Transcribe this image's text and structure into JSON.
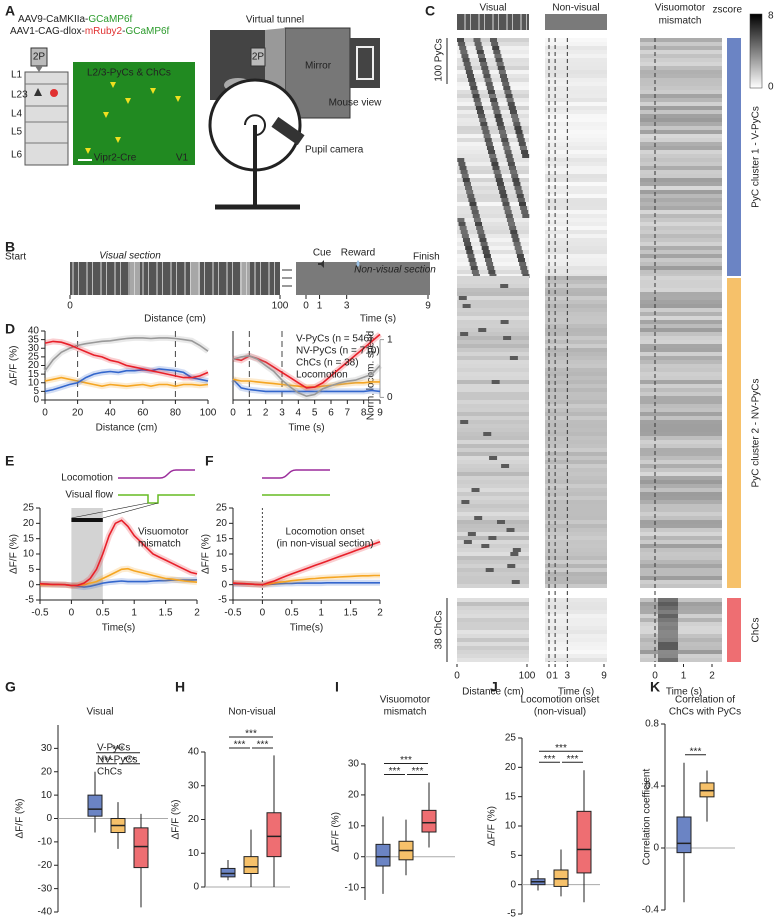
{
  "figure": {
    "letters": [
      "A",
      "B",
      "C"
    ],
    "a": {
      "virus1": [
        "AAV9-CaMKIIa-",
        "GCaMP6f"
      ],
      "virus2": [
        "AAV1-CAG-dlox-",
        "mRuby2",
        "-",
        "GCaMP6f"
      ],
      "layers": [
        "L1",
        "L23",
        "L4",
        "L5",
        "L6"
      ],
      "scope": "2P",
      "image_label": "L2/3-PyCs & ChCs",
      "cre": "Vipr2-Cre",
      "area": "V1",
      "tunnel": "Virtual tunnel",
      "mirror": "Mirror",
      "view": "Mouse view",
      "camera": "Pupil camera"
    },
    "b": {
      "start": "Start",
      "visual": "Visual section",
      "cue": "Cue",
      "reward": "Reward",
      "nonvisual": "Non-visual section",
      "finish": "Finish",
      "dist_ticks": [
        0,
        100
      ],
      "time_ticks": [
        0,
        1,
        3,
        9
      ],
      "dist_label": "Distance (cm)",
      "time_label": "Time (s)"
    },
    "c": {
      "titles": [
        "Visual",
        "Non-visual"
      ],
      "mismatch_title": [
        "Visuomotor",
        "mismatch"
      ],
      "colorbar_label": "zscore",
      "colorbar_ticks": [
        8,
        0
      ],
      "pyc_scale": "100 PyCs",
      "chc_scale": "38 ChCs",
      "visual_ticks": [
        0,
        100
      ],
      "nonvisual_ticks": [
        0,
        1,
        3,
        9
      ],
      "mismatch_ticks": [
        0,
        1,
        2
      ],
      "dist_label": "Distance (cm)",
      "time_label": "Time (s)",
      "clusters": [
        {
          "label": "PyC cluster 1 - V-PyCs",
          "color": "#6b84c4"
        },
        {
          "label": "PyC cluster 2 - NV-PyCs",
          "color": "#f6c16a"
        },
        {
          "label": "ChCs",
          "color": "#ee6e72"
        }
      ]
    }
  },
  "chart_data": [
    {
      "type": "line",
      "panel": "D",
      "x": [
        0,
        5,
        10,
        15,
        20,
        25,
        30,
        35,
        40,
        45,
        50,
        55,
        60,
        65,
        70,
        75,
        80,
        85,
        90,
        95,
        100
      ],
      "xlim": [
        0,
        100
      ],
      "xticks": [
        0,
        20,
        40,
        60,
        80,
        100
      ],
      "ylim": [
        0,
        40
      ],
      "yticks": [
        0,
        5,
        10,
        15,
        20,
        25,
        30,
        35,
        40
      ],
      "y2lim": [
        -0.045,
        1.149
      ],
      "xlabel": "Distance (cm)",
      "ylabel": "ΔF/F (%)",
      "vlines": [
        20,
        80
      ],
      "vline_style": "dashed",
      "series": [
        {
          "color": "#999999",
          "axis": "y2",
          "values": [
            0.46,
            0.65,
            0.78,
            0.85,
            0.9,
            0.93,
            0.95,
            0.97,
            0.98,
            1.0,
            1.02,
            1.03,
            1.03,
            1.02,
            1.03,
            1.03,
            1.02,
            1.0,
            0.98,
            0.9,
            0.8
          ]
        },
        {
          "color": "#f5a623",
          "values": [
            11,
            12,
            13,
            12,
            11,
            10,
            9,
            8,
            9,
            8.5,
            8,
            8.5,
            9,
            8,
            9,
            9,
            8,
            9,
            9,
            8.5,
            9
          ]
        },
        {
          "color": "#3366cc",
          "values": [
            5,
            6,
            7.5,
            9,
            10,
            13,
            15,
            16,
            16.5,
            16,
            17,
            17,
            17.5,
            17,
            18,
            17.5,
            17,
            16,
            13,
            12,
            11
          ]
        },
        {
          "color": "#e8202a",
          "values": [
            33,
            34,
            33.5,
            32,
            30,
            28,
            26,
            25,
            23,
            22,
            20,
            19,
            18,
            17,
            16,
            15,
            14,
            13,
            13,
            14,
            16
          ]
        }
      ]
    },
    {
      "type": "line",
      "x": [
        0,
        0.5,
        1,
        1.5,
        2,
        2.5,
        3,
        3.5,
        4,
        4.5,
        5,
        5.5,
        6,
        6.5,
        7,
        7.5,
        8,
        8.5,
        9
      ],
      "xlim": [
        0,
        9
      ],
      "xticks": [
        0,
        1,
        2,
        3,
        4,
        5,
        6,
        7,
        8,
        9
      ],
      "ylim": [
        0,
        40
      ],
      "y2lim": [
        -0.045,
        1.149
      ],
      "y2ticks": [
        0,
        1
      ],
      "y2label": "Norm. locom. speed",
      "xlabel": "Time (s)",
      "vlines": [
        1,
        3
      ],
      "vline_style": "dashed",
      "legend": "top-right",
      "series": [
        {
          "name": "V-PyCs (n = 546)",
          "color": "#3366cc",
          "values": [
            12,
            7,
            6,
            5.5,
            5,
            5,
            5,
            5,
            5,
            5,
            5,
            5,
            5,
            5,
            5,
            5,
            5,
            5.5,
            5
          ]
        },
        {
          "name": "NV-PyCs (n = 710)",
          "color": "#f5a623",
          "values": [
            12,
            11,
            11,
            10.5,
            10,
            9.5,
            9,
            8.5,
            8,
            7.5,
            7.5,
            8,
            8.5,
            9,
            9.5,
            10,
            10,
            10.5,
            10.5
          ]
        },
        {
          "name": "ChCs (n = 38)",
          "color": "#e8202a",
          "values": [
            24,
            23,
            25.5,
            24,
            22,
            19,
            16,
            13,
            10,
            7,
            7.5,
            10,
            14,
            18,
            22,
            26,
            30,
            34,
            38
          ]
        },
        {
          "name": "Locomotion",
          "color": "#999999",
          "axis": "y2",
          "values": [
            0.66,
            0.7,
            0.72,
            0.66,
            0.55,
            0.45,
            0.3,
            0.18,
            0.08,
            0.02,
            0.05,
            0.15,
            0.2,
            0.25,
            0.28,
            0.3,
            0.35,
            0.4,
            0.55
          ]
        }
      ]
    },
    {
      "type": "line",
      "panel": "E",
      "x": [
        -0.5,
        -0.4,
        -0.3,
        -0.2,
        -0.1,
        0,
        0.1,
        0.2,
        0.3,
        0.4,
        0.5,
        0.6,
        0.7,
        0.8,
        0.9,
        1,
        1.1,
        1.2,
        1.3,
        1.4,
        1.5,
        1.6,
        1.7,
        1.8,
        1.9,
        2
      ],
      "xlim": [
        -0.5,
        2
      ],
      "xticks": [
        -0.5,
        0,
        0.5,
        1,
        1.5,
        2
      ],
      "ylim": [
        -5,
        25
      ],
      "yticks": [
        -5,
        0,
        5,
        10,
        15,
        20,
        25
      ],
      "xlabel": "Time(s)",
      "ylabel": "ΔF/F (%)",
      "shade": [
        0,
        0.5
      ],
      "annotations": [
        "Visuomotor",
        "mismatch"
      ],
      "traces": [
        {
          "name": "Locomotion",
          "color": "#9b2c9b"
        },
        {
          "name": "Visual flow",
          "color": "#66bb22"
        }
      ],
      "series": [
        {
          "color": "#3366cc",
          "values": [
            0.2,
            0.2,
            0.1,
            0,
            0,
            -0.2,
            -0.5,
            -0.8,
            -0.5,
            0,
            0.5,
            0.8,
            1,
            1.2,
            1,
            1,
            1,
            1,
            1.2,
            1.3,
            1.3,
            1.5,
            1.5,
            1.5,
            1.5,
            1.6
          ]
        },
        {
          "color": "#f5a623",
          "values": [
            0,
            0,
            0,
            0,
            0,
            -0.3,
            -0.2,
            0,
            0.5,
            1,
            2,
            3,
            4,
            5,
            5.2,
            4.5,
            4,
            3.5,
            3,
            2.5,
            2,
            1.8,
            1.5,
            1.2,
            1,
            0.8
          ]
        },
        {
          "color": "#e8202a",
          "values": [
            0.3,
            0.2,
            0.1,
            0.1,
            0,
            -0.3,
            -0.2,
            0.5,
            2,
            5,
            10,
            16,
            20,
            21,
            19,
            16,
            14,
            12,
            10,
            9,
            8,
            7,
            6,
            5,
            4,
            3.5
          ]
        }
      ]
    },
    {
      "type": "line",
      "panel": "F",
      "x": [
        -0.5,
        -0.4,
        -0.3,
        -0.2,
        -0.1,
        0,
        0.1,
        0.2,
        0.3,
        0.4,
        0.5,
        0.6,
        0.7,
        0.8,
        0.9,
        1,
        1.1,
        1.2,
        1.3,
        1.4,
        1.5,
        1.6,
        1.7,
        1.8,
        1.9,
        2
      ],
      "xlim": [
        -0.5,
        2
      ],
      "xticks": [
        -0.5,
        0,
        0.5,
        1,
        1.5,
        2
      ],
      "ylim": [
        -5,
        25
      ],
      "yticks": [
        -5,
        0,
        5,
        10,
        15,
        20,
        25
      ],
      "xlabel": "Time(s)",
      "ylabel": "ΔF/F (%)",
      "vlines": [
        0
      ],
      "vline_style": "dotted",
      "annotations": [
        "Locomotion onset",
        "(in non-visual section)"
      ],
      "traces": [
        {
          "color": "#9b2c9b"
        },
        {
          "color": "#66bb22"
        }
      ],
      "series": [
        {
          "color": "#3366cc",
          "values": [
            0.2,
            0.2,
            0.2,
            0.2,
            0.1,
            0,
            0.1,
            0.2,
            0.3,
            0.4,
            0.4,
            0.5,
            0.5,
            0.5,
            0.5,
            0.5,
            0.6,
            0.6,
            0.6,
            0.6,
            0.6,
            0.6,
            0.6,
            0.6,
            0.6,
            0.6
          ]
        },
        {
          "color": "#f5a623",
          "values": [
            0.5,
            0.4,
            0.3,
            0.2,
            0.1,
            0,
            0.2,
            0.5,
            0.8,
            1,
            1.3,
            1.5,
            1.7,
            1.9,
            2,
            2.2,
            2.3,
            2.4,
            2.5,
            2.6,
            2.7,
            2.8,
            2.9,
            2.9,
            3,
            3
          ]
        },
        {
          "color": "#e8202a",
          "values": [
            0.5,
            0.4,
            0.3,
            0.2,
            0.1,
            0,
            0.6,
            1.2,
            2,
            2.8,
            3.5,
            4.2,
            4.9,
            5.6,
            6.3,
            7,
            7.7,
            8.4,
            9.1,
            9.8,
            10.5,
            11.2,
            11.9,
            12.6,
            13.3,
            14
          ]
        }
      ]
    },
    {
      "type": "box",
      "panel": "G",
      "title": [
        "Visual"
      ],
      "ylim": [
        -40,
        40
      ],
      "yticks": [
        -40,
        -30,
        -20,
        -10,
        0,
        10,
        20,
        30
      ],
      "ylabel": "ΔF/F (%)",
      "significance": [
        "***",
        "***",
        "***"
      ],
      "legend": true,
      "series": [
        {
          "name": "V-PyCs",
          "color": "#6b84c4",
          "values": [
            -6,
            1,
            4,
            10,
            20
          ]
        },
        {
          "name": "NV-PyCs",
          "color": "#f6c16a",
          "values": [
            -13,
            -6,
            -3,
            0,
            7
          ]
        },
        {
          "name": "ChCs",
          "color": "#ee6e72",
          "values": [
            -38,
            -21,
            -12,
            -4,
            2
          ]
        }
      ]
    },
    {
      "type": "box",
      "panel": "H",
      "title": [
        "Non-visual"
      ],
      "ylim": [
        0,
        40
      ],
      "yticks": [
        0,
        10,
        20,
        30,
        40
      ],
      "ylabel": "ΔF/F (%)",
      "significance": [
        "***",
        "***",
        "***"
      ],
      "series": [
        {
          "color": "#6b84c4",
          "values": [
            2,
            3,
            4,
            5.5,
            8
          ]
        },
        {
          "color": "#f6c16a",
          "values": [
            0,
            4,
            6,
            9,
            17
          ]
        },
        {
          "color": "#ee6e72",
          "values": [
            0,
            9,
            15,
            22,
            39
          ]
        }
      ]
    },
    {
      "type": "box",
      "panel": "I",
      "title": [
        "Visuomotor",
        "mismatch"
      ],
      "ylim": [
        -14,
        30
      ],
      "yticks": [
        -10,
        0,
        10,
        20,
        30
      ],
      "ylabel": "ΔF/F (%)",
      "significance": [
        "***",
        "***",
        "***"
      ],
      "series": [
        {
          "color": "#6b84c4",
          "values": [
            -12,
            -3,
            0,
            4,
            13
          ]
        },
        {
          "color": "#f6c16a",
          "values": [
            -6,
            -1,
            2,
            5,
            12
          ]
        },
        {
          "color": "#ee6e72",
          "values": [
            3,
            8,
            11,
            15,
            24
          ]
        }
      ]
    },
    {
      "type": "box",
      "panel": "J",
      "title": [
        "Locomotion onset",
        "(non-visual)"
      ],
      "ylim": [
        -5,
        25
      ],
      "yticks": [
        -5,
        0,
        5,
        10,
        15,
        20,
        25
      ],
      "ylabel": "ΔF/F (%)",
      "significance": [
        "***",
        "***",
        "***"
      ],
      "series": [
        {
          "color": "#6b84c4",
          "values": [
            -1,
            0,
            0.5,
            1,
            2.5
          ]
        },
        {
          "color": "#f6c16a",
          "values": [
            -2,
            -0.3,
            1,
            2.5,
            6
          ]
        },
        {
          "color": "#ee6e72",
          "values": [
            -3,
            2,
            6,
            12.5,
            19.5
          ]
        }
      ]
    },
    {
      "type": "box",
      "panel": "K",
      "title": [
        "Correlation of",
        "ChCs with PyCs"
      ],
      "ylim": [
        -0.4,
        0.8
      ],
      "yticks": [
        -0.4,
        0,
        0.4,
        0.8
      ],
      "ylabel": "Correlation coefficient",
      "significance": [
        "***"
      ],
      "series": [
        {
          "color": "#6b84c4",
          "values": [
            -0.35,
            -0.03,
            0.03,
            0.2,
            0.55
          ]
        },
        {
          "color": "#f6c16a",
          "values": [
            0.17,
            0.33,
            0.37,
            0.42,
            0.5
          ]
        }
      ]
    }
  ]
}
